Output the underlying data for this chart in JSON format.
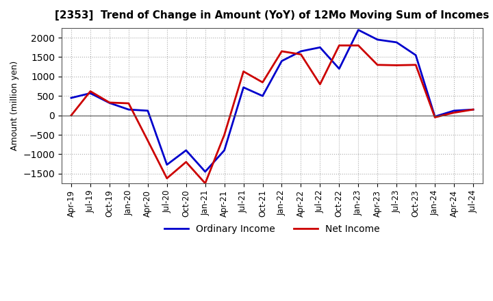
{
  "title": "[2353]  Trend of Change in Amount (YoY) of 12Mo Moving Sum of Incomes",
  "ylabel": "Amount (million yen)",
  "background_color": "#ffffff",
  "plot_bg_color": "#ffffff",
  "grid_color": "#aaaaaa",
  "x_labels": [
    "Apr-19",
    "Jul-19",
    "Oct-19",
    "Jan-20",
    "Apr-20",
    "Jul-20",
    "Oct-20",
    "Jan-21",
    "Apr-21",
    "Jul-21",
    "Oct-21",
    "Jan-22",
    "Apr-22",
    "Jul-22",
    "Oct-22",
    "Jan-23",
    "Apr-23",
    "Jul-23",
    "Oct-23",
    "Jan-24",
    "Apr-24",
    "Jul-24"
  ],
  "ordinary_income": [
    450,
    570,
    320,
    150,
    120,
    -1270,
    -900,
    -1450,
    -900,
    720,
    500,
    1400,
    1650,
    1750,
    1200,
    2200,
    1950,
    1880,
    1550,
    -30,
    120,
    150
  ],
  "net_income": [
    0,
    620,
    330,
    310,
    -650,
    -1620,
    -1200,
    -1750,
    -500,
    1130,
    850,
    1650,
    1570,
    800,
    1800,
    1800,
    1300,
    1290,
    1300,
    -50,
    70,
    150
  ],
  "ordinary_color": "#0000cc",
  "net_color": "#cc0000",
  "ylim_min": -1750,
  "ylim_max": 2250,
  "line_width": 2.0
}
